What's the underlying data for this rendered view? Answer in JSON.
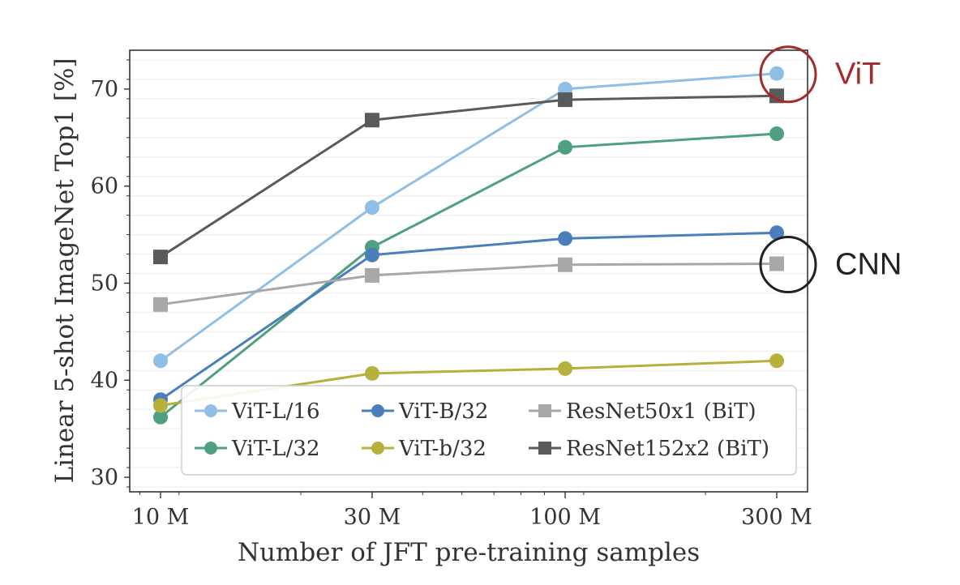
{
  "chart_data": {
    "type": "line",
    "title": "",
    "xlabel": "Number of JFT pre-training samples",
    "ylabel": "Linear 5-shot ImageNet Top1 [%]",
    "x_scale": "log",
    "x": [
      9,
      30,
      90,
      300
    ],
    "x_tick_labels": [
      "10 M",
      "30 M",
      "100 M",
      "300 M"
    ],
    "y_ticks": [
      30,
      40,
      50,
      60,
      70
    ],
    "ylim": [
      28.5,
      74
    ],
    "grid": "horizontal",
    "legend_position": "lower-center",
    "series": [
      {
        "name": "ViT-L/16",
        "marker": "circle",
        "color": "#8fbfe6",
        "values": [
          42.0,
          57.8,
          70.0,
          71.6
        ]
      },
      {
        "name": "ViT-L/32",
        "marker": "circle",
        "color": "#4fa080",
        "values": [
          36.2,
          53.7,
          64.0,
          65.4
        ]
      },
      {
        "name": "ViT-B/32",
        "marker": "circle",
        "color": "#4a7fbb",
        "values": [
          38.0,
          52.9,
          54.6,
          55.2
        ]
      },
      {
        "name": "ViT-b/32",
        "marker": "circle",
        "color": "#b5b13c",
        "values": [
          37.4,
          40.7,
          41.2,
          42.0
        ]
      },
      {
        "name": "ResNet50x1 (BiT)",
        "marker": "square",
        "color": "#a8a8a8",
        "values": [
          47.8,
          50.8,
          51.9,
          52.0
        ]
      },
      {
        "name": "ResNet152x2 (BiT)",
        "marker": "square",
        "color": "#5a5a5a",
        "values": [
          52.7,
          66.8,
          68.9,
          69.3
        ]
      }
    ],
    "annotations": [
      {
        "text": "ViT",
        "color": "#a52a2a",
        "circle_series": "ViT-L/16",
        "circle_index": 3
      },
      {
        "text": "CNN",
        "color": "#222222",
        "circle_series": "ResNet50x1 (BiT)",
        "circle_index": 3
      }
    ]
  }
}
